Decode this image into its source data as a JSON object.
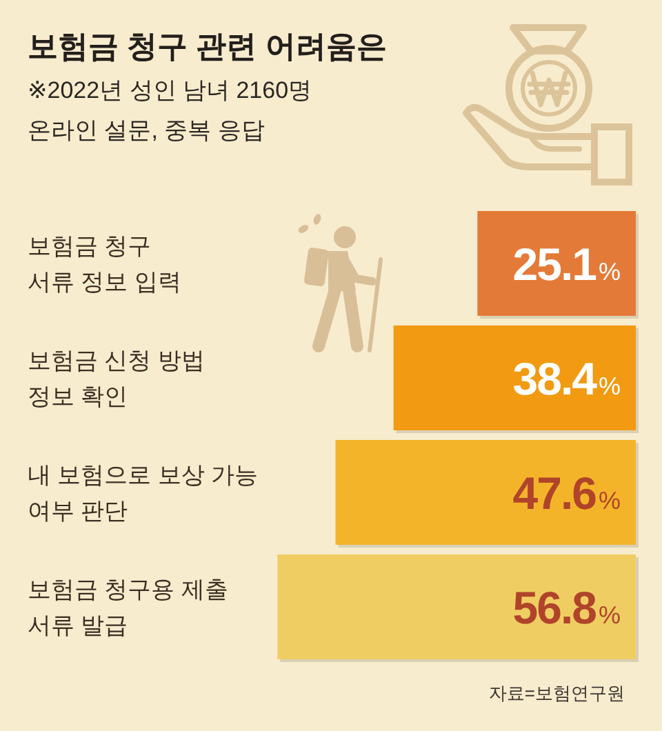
{
  "chart_data": {
    "type": "bar",
    "orientation": "horizontal",
    "title": "보험금 청구 관련 어려움은",
    "subtitle": "※2022년 성인 남녀 2160명\n온라인 설문, 중복 응답",
    "categories": [
      "보험금 청구\n서류 정보 입력",
      "보험금 신청 방법\n정보 확인",
      "내 보험으로 보상 가능\n여부 판단",
      "보험금 청구용 제출\n서류 발급"
    ],
    "values": [
      25.1,
      38.4,
      47.6,
      56.8
    ],
    "colors": [
      "#e47a38",
      "#f19a12",
      "#f4b42a",
      "#f0cd63"
    ],
    "value_labels": [
      "25.1%",
      "38.4%",
      "47.6%",
      "56.8%"
    ],
    "annotations": [
      "자료=보험연구원"
    ]
  }
}
